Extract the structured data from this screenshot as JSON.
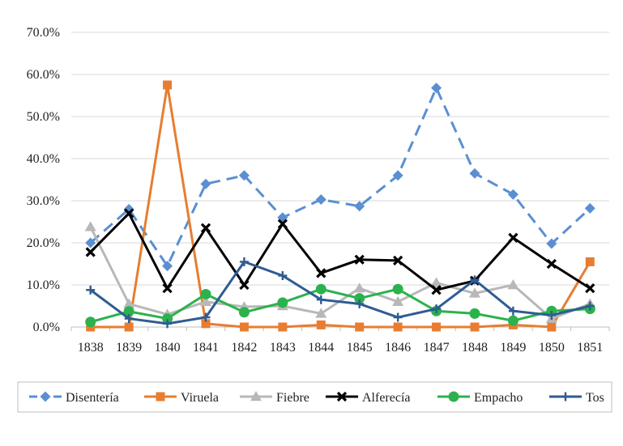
{
  "chart_data": {
    "type": "line",
    "title": "",
    "xlabel": "",
    "ylabel": "",
    "categories": [
      "1838",
      "1839",
      "1840",
      "1841",
      "1842",
      "1843",
      "1844",
      "1845",
      "1846",
      "1847",
      "1848",
      "1849",
      "1850",
      "1851"
    ],
    "ylim": [
      0,
      70
    ],
    "yticks": [
      0,
      10,
      20,
      30,
      40,
      50,
      60,
      70
    ],
    "ytick_labels": [
      "0.0%",
      "10.0%",
      "20.0%",
      "30.0%",
      "40.0%",
      "50.0%",
      "60.0%",
      "70.0%"
    ],
    "grid": true,
    "legend_position": "bottom",
    "series": [
      {
        "name": "Disentería",
        "color": "#5b8fd1",
        "marker": "diamond",
        "dash": true,
        "values": [
          20.0,
          28.0,
          14.5,
          34.0,
          36.0,
          26.0,
          30.3,
          28.7,
          36.0,
          56.8,
          36.5,
          31.5,
          19.8,
          28.2
        ]
      },
      {
        "name": "Viruela",
        "color": "#e87d31",
        "marker": "square",
        "dash": false,
        "values": [
          0.0,
          0.0,
          57.5,
          0.8,
          0.0,
          0.0,
          0.5,
          0.0,
          0.0,
          0.0,
          0.0,
          0.5,
          0.0,
          15.5
        ]
      },
      {
        "name": "Fiebre",
        "color": "#b8b8b8",
        "marker": "triangle",
        "dash": false,
        "values": [
          23.8,
          5.5,
          3.0,
          6.0,
          4.8,
          5.0,
          3.2,
          9.2,
          6.0,
          10.5,
          8.0,
          10.0,
          2.0,
          5.5
        ]
      },
      {
        "name": "Alferecía",
        "color": "#000000",
        "marker": "x",
        "dash": false,
        "values": [
          17.8,
          27.0,
          9.2,
          23.5,
          10.0,
          24.5,
          12.8,
          16.0,
          15.8,
          8.8,
          11.0,
          21.2,
          15.0,
          9.2
        ]
      },
      {
        "name": "Empacho",
        "color": "#2bb24c",
        "marker": "circle",
        "dash": false,
        "values": [
          1.2,
          3.7,
          2.0,
          7.8,
          3.5,
          5.8,
          9.0,
          6.8,
          9.0,
          3.8,
          3.2,
          1.5,
          3.8,
          4.3
        ]
      },
      {
        "name": "Tos",
        "color": "#2f5c92",
        "marker": "plus",
        "dash": false,
        "values": [
          8.8,
          2.0,
          0.8,
          2.3,
          15.5,
          12.2,
          6.5,
          5.5,
          2.3,
          4.3,
          11.2,
          3.8,
          2.8,
          5.0
        ]
      }
    ]
  }
}
